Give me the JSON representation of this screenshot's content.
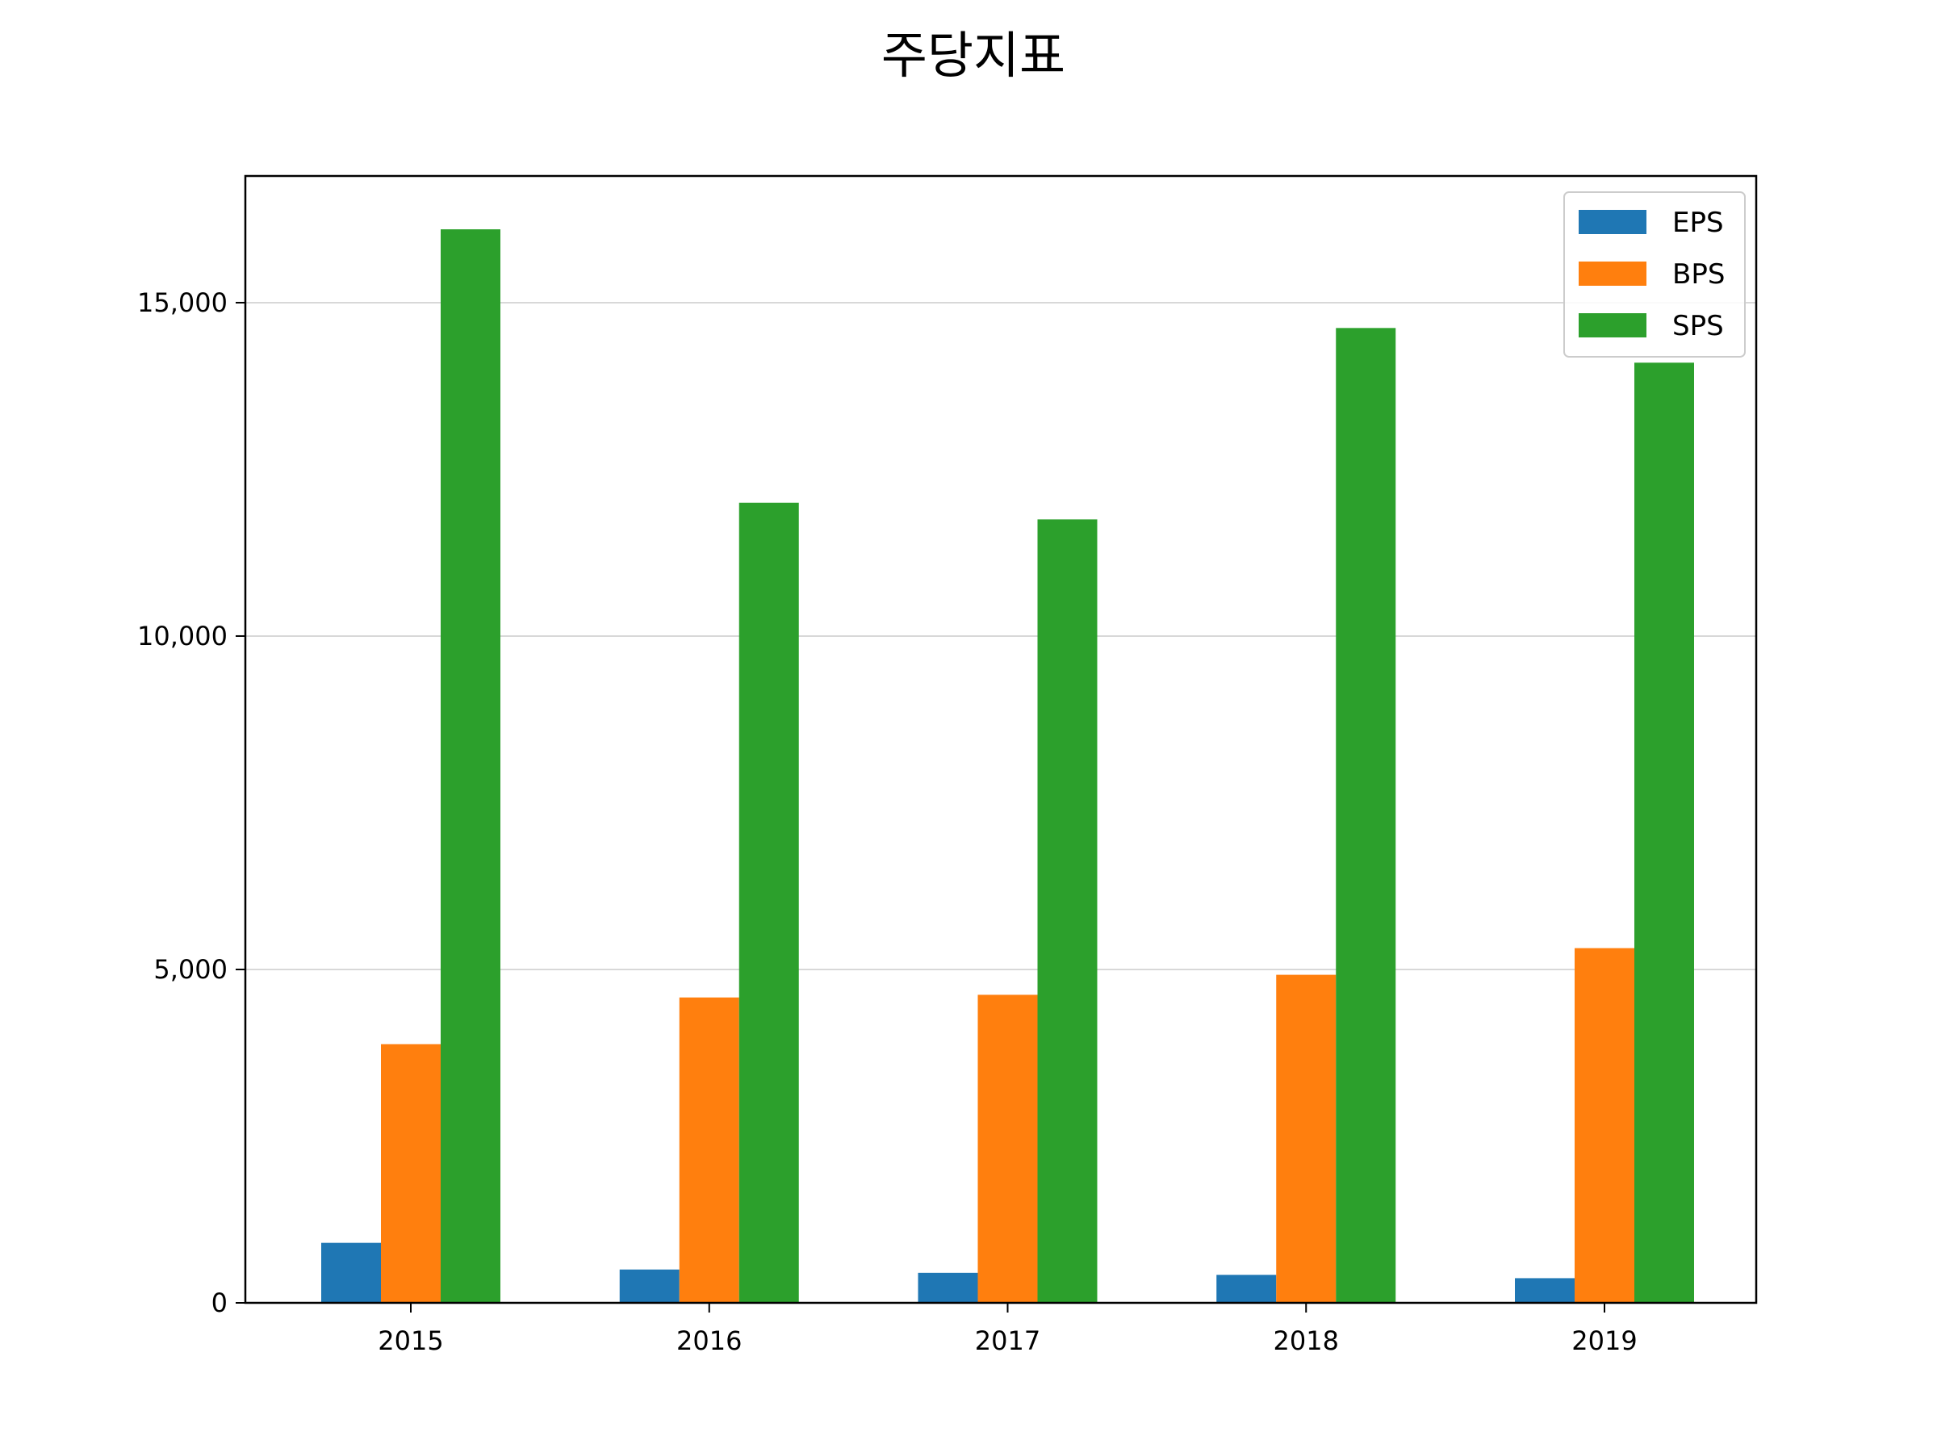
{
  "chart_data": {
    "type": "bar",
    "title": "주당지표",
    "xlabel": "",
    "ylabel": "",
    "categories": [
      "2015",
      "2016",
      "2017",
      "2018",
      "2019"
    ],
    "series": [
      {
        "name": "EPS",
        "color": "#1f77b4",
        "values": [
          900,
          500,
          450,
          420,
          370
        ]
      },
      {
        "name": "BPS",
        "color": "#ff7f0e",
        "values": [
          3880,
          4580,
          4620,
          4920,
          5320
        ]
      },
      {
        "name": "SPS",
        "color": "#2ca02c",
        "values": [
          16100,
          12000,
          11750,
          14620,
          14100
        ]
      }
    ],
    "ylim": [
      0,
      16900
    ],
    "yticks": [
      0,
      5000,
      10000,
      15000
    ],
    "ytick_labels": [
      "0",
      "5,000",
      "10,000",
      "15,000"
    ],
    "grid": "y",
    "legend": "top-right"
  }
}
